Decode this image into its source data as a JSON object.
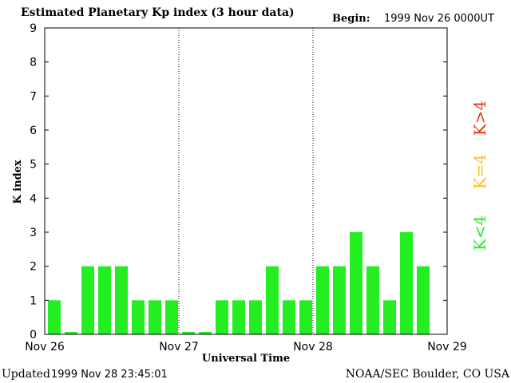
{
  "header": {
    "title": "Estimated Planetary Kp index (3 hour data)",
    "begin_label": "Begin:",
    "begin_value": "1999 Nov 26 0000UT"
  },
  "footer": {
    "updated_label": "Updated",
    "updated_value": "1999 Nov 28 23:45:01",
    "credit": "NOAA/SEC Boulder, CO USA"
  },
  "legend": {
    "below": "K<4",
    "equal": "K=4",
    "above": "K>4",
    "below_color": "#22ee22",
    "equal_color": "#f5c518",
    "above_color": "#ee3311"
  },
  "chart_data": {
    "type": "bar",
    "title": "Estimated Planetary Kp index (3 hour data)",
    "xlabel": "Universal Time",
    "ylabel": "K index",
    "ylim": [
      0,
      9
    ],
    "yticks": [
      "0",
      "1",
      "2",
      "3",
      "4",
      "5",
      "6",
      "7",
      "8",
      "9"
    ],
    "xticks": [
      "Nov 26",
      "Nov 27",
      "Nov 28",
      "Nov 29"
    ],
    "interval_hours": 3,
    "values": [
      1,
      0,
      2,
      2,
      2,
      1,
      1,
      1,
      0,
      0,
      1,
      1,
      1,
      2,
      1,
      1,
      2,
      2,
      3,
      2,
      1,
      3,
      2
    ],
    "bar_color": "#22ee22",
    "day_separators": "dotted"
  }
}
